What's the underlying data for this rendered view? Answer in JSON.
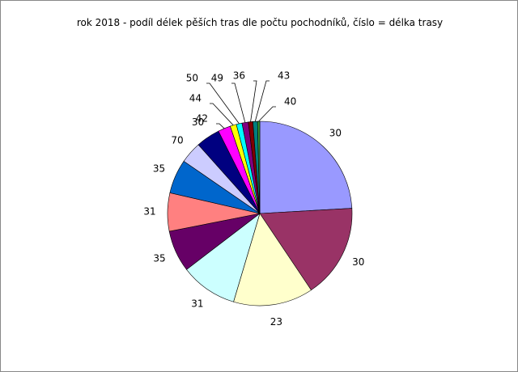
{
  "chart_data": {
    "type": "pie",
    "title": "rok 2018 - podíl délek pěších tras dle počtu pochodníků, číslo = délka trasy",
    "categories": [
      "30",
      "30",
      "23",
      "31",
      "35",
      "31",
      "35",
      "70",
      "30",
      "42",
      "44",
      "50",
      "49",
      "36",
      "43",
      "40"
    ],
    "values": [
      24.1,
      16.5,
      14,
      10,
      7.3,
      6.7,
      6,
      3.8,
      4.2,
      2.2,
      1.1,
      1,
      1.1,
      0.8,
      0.8,
      0.4
    ],
    "colors": [
      "#9999ff",
      "#993366",
      "#ffffcc",
      "#ccffff",
      "#660066",
      "#ff8080",
      "#0066cc",
      "#ccccff",
      "#000080",
      "#ff00ff",
      "#ffff00",
      "#00ffff",
      "#800080",
      "#800000",
      "#008080",
      "#339933"
    ]
  }
}
